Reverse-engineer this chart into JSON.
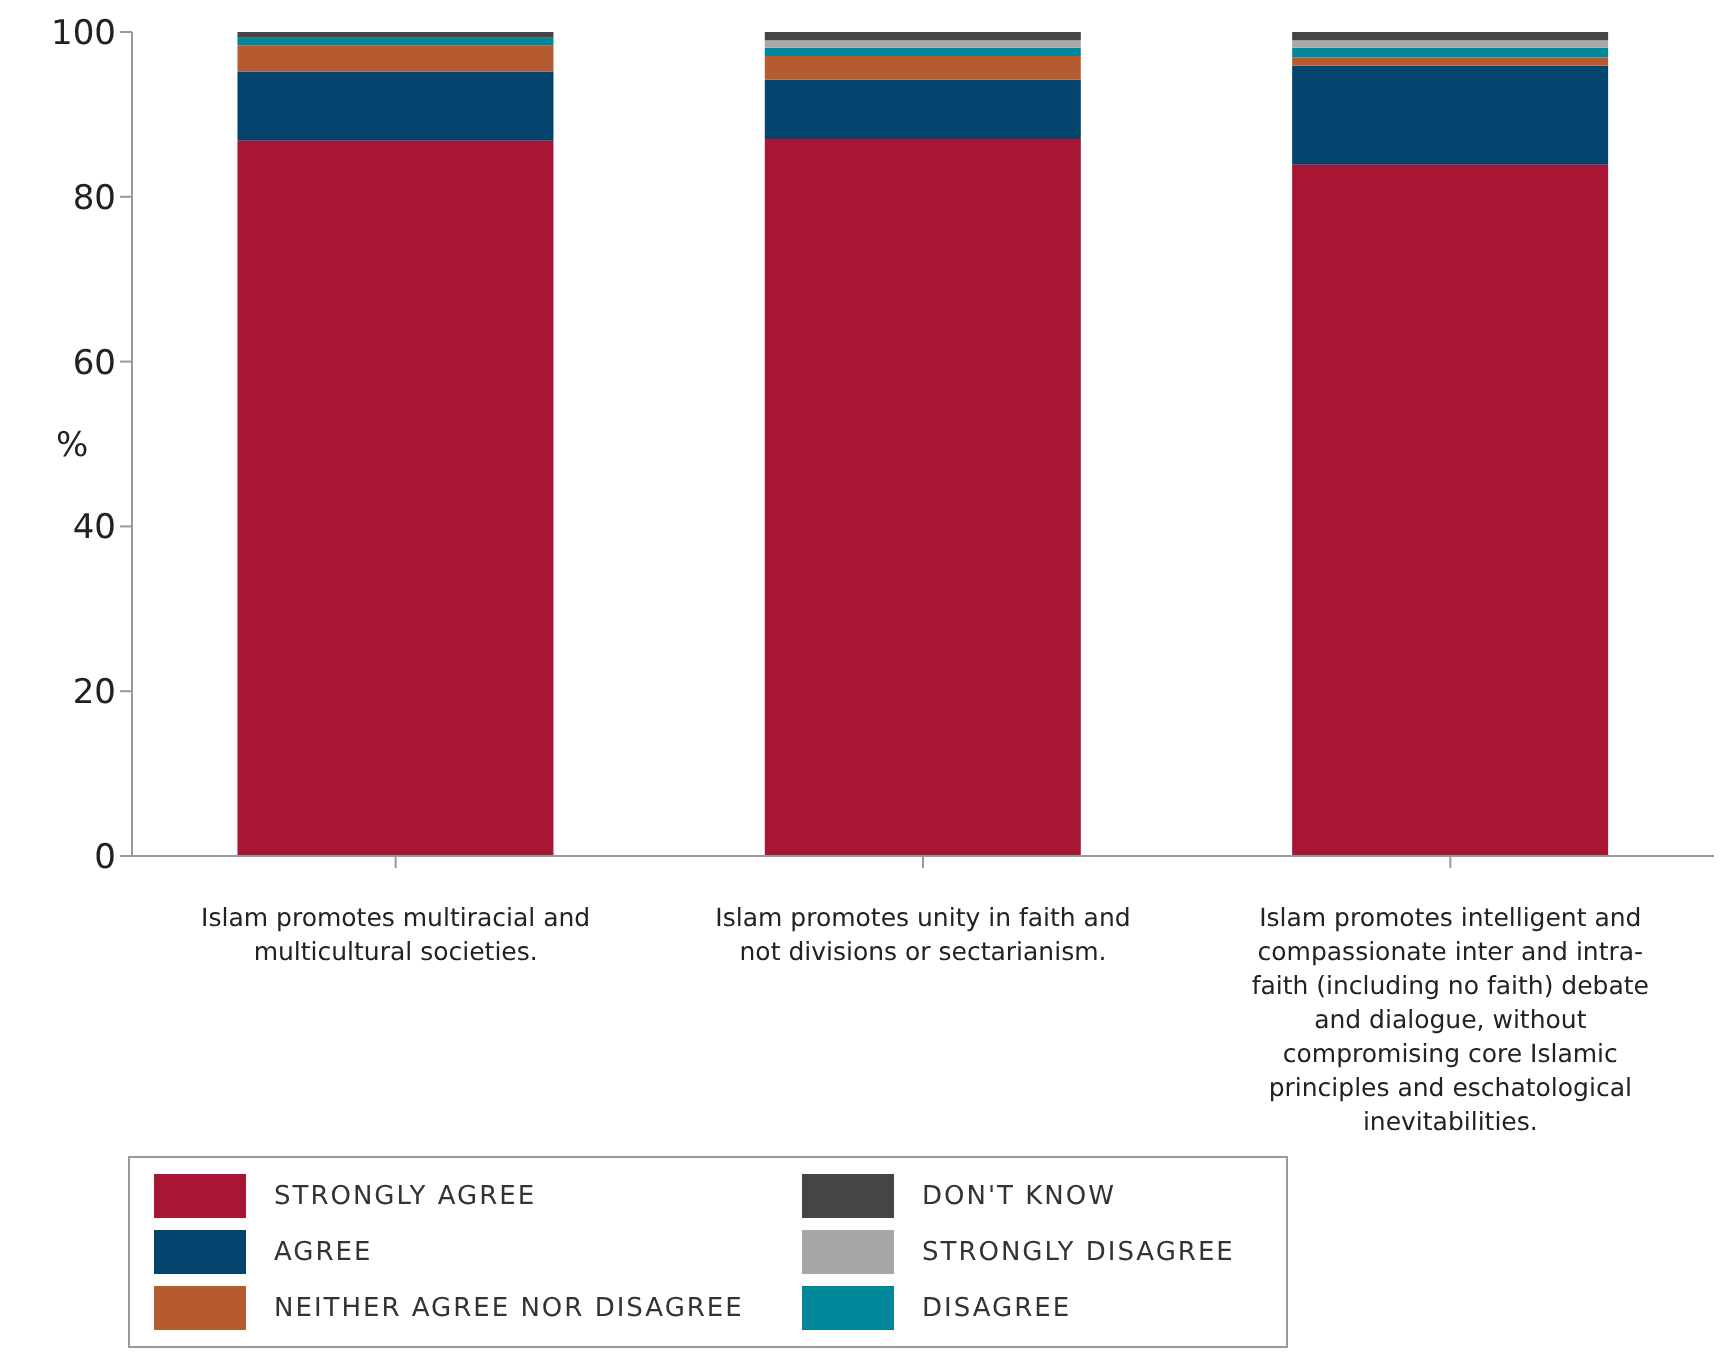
{
  "chart_data": {
    "type": "bar",
    "stacked": true,
    "ylabel": "%",
    "categories": [
      "Islam promotes multiracial and multicultural societies.",
      "Islam promotes unity in faith and not divisions or sectarianism.",
      "Islam promotes intelligent and compassionate inter and intra-faith (including no faith) debate and dialogue, without compromising core Islamic principles and eschatological inevitabilities."
    ],
    "series": [
      {
        "name": "STRONGLY AGREE",
        "color": "#a81535",
        "values": [
          86.8,
          87.0,
          83.9
        ]
      },
      {
        "name": "AGREE",
        "color": "#02446d",
        "values": [
          8.4,
          7.2,
          12.0
        ]
      },
      {
        "name": "NEITHER AGREE NOR DISAGREE",
        "color": "#b65b2f",
        "values": [
          3.2,
          2.9,
          1.0
        ]
      },
      {
        "name": "DISAGREE",
        "color": "#00889a",
        "values": [
          0.9,
          1.0,
          1.2
        ]
      },
      {
        "name": "STRONGLY DISAGREE",
        "color": "#a6a7a9",
        "values": [
          0,
          0.9,
          0.9
        ]
      },
      {
        "name": "DON'T KNOW",
        "color": "#454547",
        "values": [
          0.7,
          1.0,
          1.0
        ]
      }
    ],
    "ylim": [
      0,
      100
    ],
    "yticks": [
      0,
      20,
      40,
      60,
      80,
      100
    ],
    "grid": false,
    "legend": "bottom left"
  }
}
